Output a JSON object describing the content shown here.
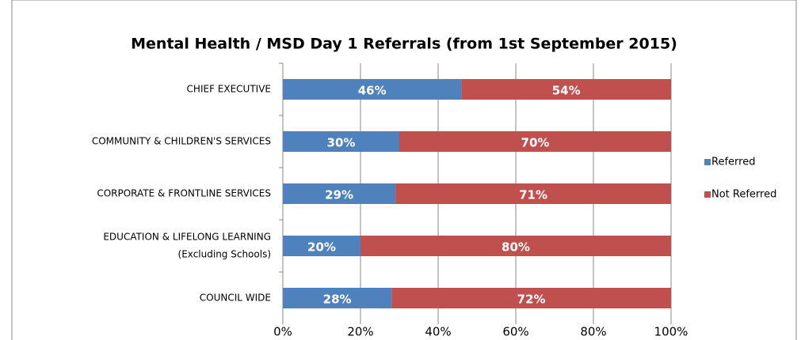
{
  "chart_data": {
    "type": "stacked_bar_horizontal",
    "title": "Mental Health / MSD Day 1 Referrals (from 1st September 2015)",
    "categories": [
      [
        "CHIEF EXECUTIVE"
      ],
      [
        "COMMUNITY & CHILDREN'S SERVICES"
      ],
      [
        "CORPORATE & FRONTLINE SERVICES"
      ],
      [
        "EDUCATION & LIFELONG LEARNING",
        "(Excluding Schools)"
      ],
      [
        "COUNCIL WIDE"
      ]
    ],
    "series": [
      {
        "name": "Referred",
        "color": "#4f81bd",
        "values": [
          46,
          30,
          29,
          20,
          28
        ],
        "value_labels": [
          "46%",
          "30%",
          "29%",
          "20%",
          "28%"
        ]
      },
      {
        "name": "Not Referred",
        "color": "#c0504d",
        "values": [
          54,
          70,
          71,
          80,
          72
        ],
        "value_labels": [
          "54%",
          "70%",
          "71%",
          "80%",
          "72%"
        ]
      }
    ],
    "xlim": [
      0,
      100
    ],
    "xticks": [
      {
        "value": 0,
        "label": "0%"
      },
      {
        "value": 20,
        "label": "20%"
      },
      {
        "value": 40,
        "label": "40%"
      },
      {
        "value": 60,
        "label": "60%"
      },
      {
        "value": 80,
        "label": "80%"
      },
      {
        "value": 100,
        "label": "100%"
      }
    ],
    "grid": true,
    "legend": "right"
  }
}
